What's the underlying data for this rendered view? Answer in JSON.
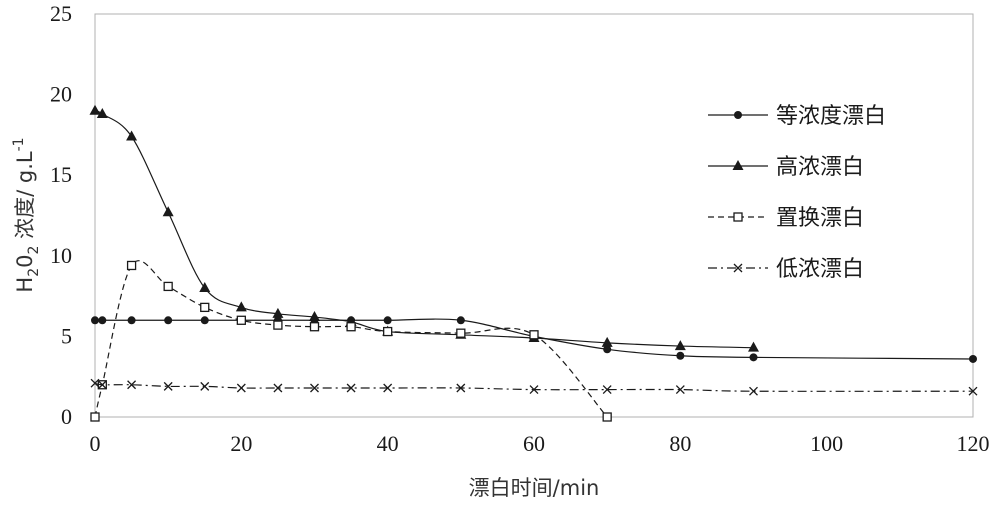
{
  "chart_data": {
    "type": "line",
    "title": "",
    "xlabel": "漂白时间/min",
    "ylabel": {
      "prefix": "H",
      "sub1": "2",
      "mid": "0",
      "sub2": "2",
      "rest": " 浓度/ g.L",
      "sup": "-1"
    },
    "xlim": [
      0,
      120
    ],
    "ylim": [
      0,
      25
    ],
    "xticks": [
      0,
      20,
      40,
      60,
      80,
      100,
      120
    ],
    "yticks": [
      0,
      5,
      10,
      15,
      20,
      25
    ],
    "grid": false,
    "legend_position": "right",
    "series": [
      {
        "name": "等浓度漂白",
        "marker": "circle",
        "line": "solid",
        "color": "#1a1a1a",
        "x": [
          0,
          1,
          5,
          10,
          15,
          20,
          25,
          30,
          35,
          40,
          50,
          60,
          70,
          80,
          90,
          120
        ],
        "y": [
          6,
          6,
          6,
          6,
          6,
          6,
          6,
          6,
          6,
          6,
          6,
          5,
          4.2,
          3.8,
          3.7,
          3.6
        ]
      },
      {
        "name": "高浓漂白",
        "marker": "triangle",
        "line": "solid",
        "color": "#1a1a1a",
        "x": [
          0,
          1,
          5,
          10,
          15,
          20,
          25,
          30,
          35,
          40,
          50,
          60,
          70,
          80,
          90
        ],
        "y": [
          19,
          18.8,
          17.4,
          12.7,
          8,
          6.8,
          6.4,
          6.2,
          5.9,
          5.3,
          5.1,
          4.9,
          4.6,
          4.4,
          4.3
        ]
      },
      {
        "name": "置换漂白",
        "marker": "square",
        "line": "dashed",
        "color": "#1a1a1a",
        "x": [
          0,
          1,
          5,
          10,
          15,
          20,
          25,
          30,
          35,
          40,
          50,
          60,
          70
        ],
        "y": [
          0,
          2,
          9.4,
          8.1,
          6.8,
          6,
          5.7,
          5.6,
          5.6,
          5.3,
          5.2,
          5.1,
          0
        ]
      },
      {
        "name": "低浓漂白",
        "marker": "x",
        "line": "dashdot",
        "color": "#1a1a1a",
        "x": [
          0,
          1,
          5,
          10,
          15,
          20,
          25,
          30,
          35,
          40,
          50,
          60,
          70,
          80,
          90,
          120
        ],
        "y": [
          2.1,
          2,
          2,
          1.9,
          1.9,
          1.8,
          1.8,
          1.8,
          1.8,
          1.8,
          1.8,
          1.7,
          1.7,
          1.7,
          1.6,
          1.6
        ]
      }
    ]
  }
}
